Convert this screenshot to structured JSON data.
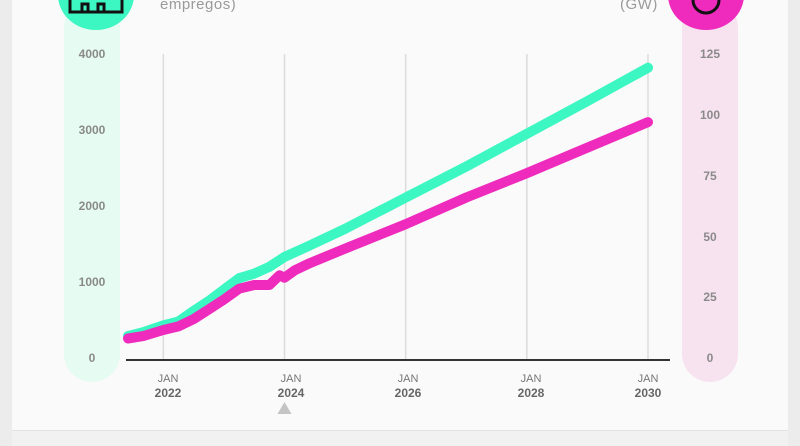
{
  "header": {
    "left_unit": "empregos)",
    "right_unit": "(GW)"
  },
  "colors": {
    "jobs": "#3cf7c2",
    "capacity": "#ee2bbd",
    "left_band": "#e6fbf2",
    "right_band": "#f7e3ef"
  },
  "chart_data": {
    "type": "line",
    "x_tick_labels": [
      {
        "month": "JAN",
        "year": "2022"
      },
      {
        "month": "JAN",
        "year": "2024"
      },
      {
        "month": "JAN",
        "year": "2026"
      },
      {
        "month": "JAN",
        "year": "2028"
      },
      {
        "month": "JAN",
        "year": "2030"
      }
    ],
    "left_axis": {
      "ticks": [
        "0",
        "1000",
        "2000",
        "3000",
        "4000"
      ],
      "ylim": [
        0,
        4000
      ]
    },
    "right_axis": {
      "ticks": [
        "0",
        "25",
        "50",
        "75",
        "100",
        "125"
      ],
      "ylim": [
        0,
        125
      ]
    },
    "xlim": [
      "2021-06",
      "2030-01"
    ],
    "marker_at": "2024-01",
    "series": [
      {
        "axis": "left",
        "color": "#3cf7c2",
        "points": [
          [
            "2021-06",
            290
          ],
          [
            "2021-09",
            340
          ],
          [
            "2022-01",
            430
          ],
          [
            "2022-04",
            480
          ],
          [
            "2022-07",
            620
          ],
          [
            "2022-10",
            750
          ],
          [
            "2023-01",
            900
          ],
          [
            "2023-04",
            1050
          ],
          [
            "2023-07",
            1110
          ],
          [
            "2023-10",
            1200
          ],
          [
            "2024-01",
            1330
          ],
          [
            "2024-06",
            1480
          ],
          [
            "2025-01",
            1700
          ],
          [
            "2026-01",
            2110
          ],
          [
            "2027-01",
            2520
          ],
          [
            "2028-01",
            2950
          ],
          [
            "2029-01",
            3380
          ],
          [
            "2030-01",
            3820
          ]
        ]
      },
      {
        "axis": "right",
        "color": "#ee2bbd",
        "points": [
          [
            "2021-06",
            8
          ],
          [
            "2021-09",
            9
          ],
          [
            "2022-01",
            11.5
          ],
          [
            "2022-04",
            13
          ],
          [
            "2022-07",
            16
          ],
          [
            "2022-10",
            20
          ],
          [
            "2023-01",
            24
          ],
          [
            "2023-04",
            28.5
          ],
          [
            "2023-07",
            30
          ],
          [
            "2023-10",
            30
          ],
          [
            "2023-12",
            34
          ],
          [
            "2024-01",
            33
          ],
          [
            "2024-03",
            36
          ],
          [
            "2024-06",
            39
          ],
          [
            "2025-01",
            45
          ],
          [
            "2026-01",
            55
          ],
          [
            "2027-01",
            66
          ],
          [
            "2028-01",
            76
          ],
          [
            "2029-01",
            86.5
          ],
          [
            "2030-01",
            97
          ]
        ]
      }
    ]
  }
}
